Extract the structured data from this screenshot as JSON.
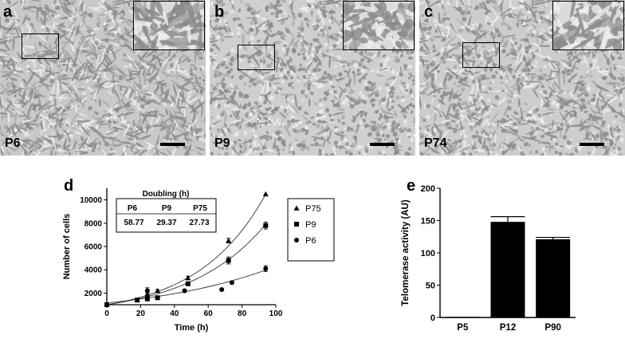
{
  "panels": [
    {
      "label": "a",
      "passage": "P6",
      "texture": "elongated"
    },
    {
      "label": "b",
      "passage": "P9",
      "texture": "round"
    },
    {
      "label": "c",
      "passage": "P74",
      "texture": "mixed"
    }
  ],
  "figure_d": {
    "label": "d"
  },
  "figure_e": {
    "label": "e"
  },
  "chart_data": [
    {
      "type": "scatter",
      "xlabel": "Time (h)",
      "ylabel": "Number of cells",
      "xlim": [
        0,
        100
      ],
      "ylim": [
        1000,
        11000
      ],
      "xticks": [
        0,
        20,
        40,
        60,
        80,
        100
      ],
      "yticks": [
        2000,
        4000,
        6000,
        8000,
        10000
      ],
      "legend_position": "right",
      "fit_curves": true,
      "inset_table": {
        "title": "Doubling (h)",
        "headers": [
          "P6",
          "P9",
          "P75"
        ],
        "values": [
          "58.77",
          "29.37",
          "27.73"
        ]
      },
      "series": [
        {
          "name": "P75",
          "marker": "triangle",
          "points": [
            [
              0,
              1000
            ],
            [
              18,
              1400
            ],
            [
              24,
              1900
            ],
            [
              30,
              2200
            ],
            [
              48,
              3300
            ],
            [
              72,
              6500
            ],
            [
              94,
              10500
            ]
          ],
          "errors": [
            0,
            100,
            150,
            100,
            150,
            200,
            0
          ]
        },
        {
          "name": "P9",
          "marker": "square",
          "points": [
            [
              0,
              1000
            ],
            [
              18,
              1400
            ],
            [
              24,
              1500
            ],
            [
              30,
              1600
            ],
            [
              48,
              2800
            ],
            [
              72,
              4800
            ],
            [
              94,
              7800
            ]
          ],
          "errors": [
            0,
            80,
            80,
            80,
            120,
            300,
            300
          ]
        },
        {
          "name": "P6",
          "marker": "circle",
          "points": [
            [
              0,
              1000
            ],
            [
              24,
              2200
            ],
            [
              46,
              2200
            ],
            [
              68,
              2300
            ],
            [
              74,
              2900
            ],
            [
              94,
              4100
            ]
          ],
          "errors": [
            0,
            250,
            120,
            100,
            100,
            250
          ]
        }
      ],
      "fits": [
        {
          "name": "P75",
          "a": 1000,
          "k": 0.025
        },
        {
          "name": "P9",
          "a": 1000,
          "k": 0.022
        },
        {
          "name": "P6",
          "a": 1150,
          "k": 0.0132
        }
      ]
    },
    {
      "type": "bar",
      "ylabel": "Telomerase activity (AU)",
      "categories": [
        "P5",
        "P12",
        "P90"
      ],
      "values": [
        1,
        148,
        121
      ],
      "errors": [
        0,
        8,
        3
      ],
      "ylim": [
        0,
        200
      ],
      "yticks": [
        0,
        50,
        100,
        150,
        200
      ],
      "bar_color": "#000000"
    }
  ]
}
